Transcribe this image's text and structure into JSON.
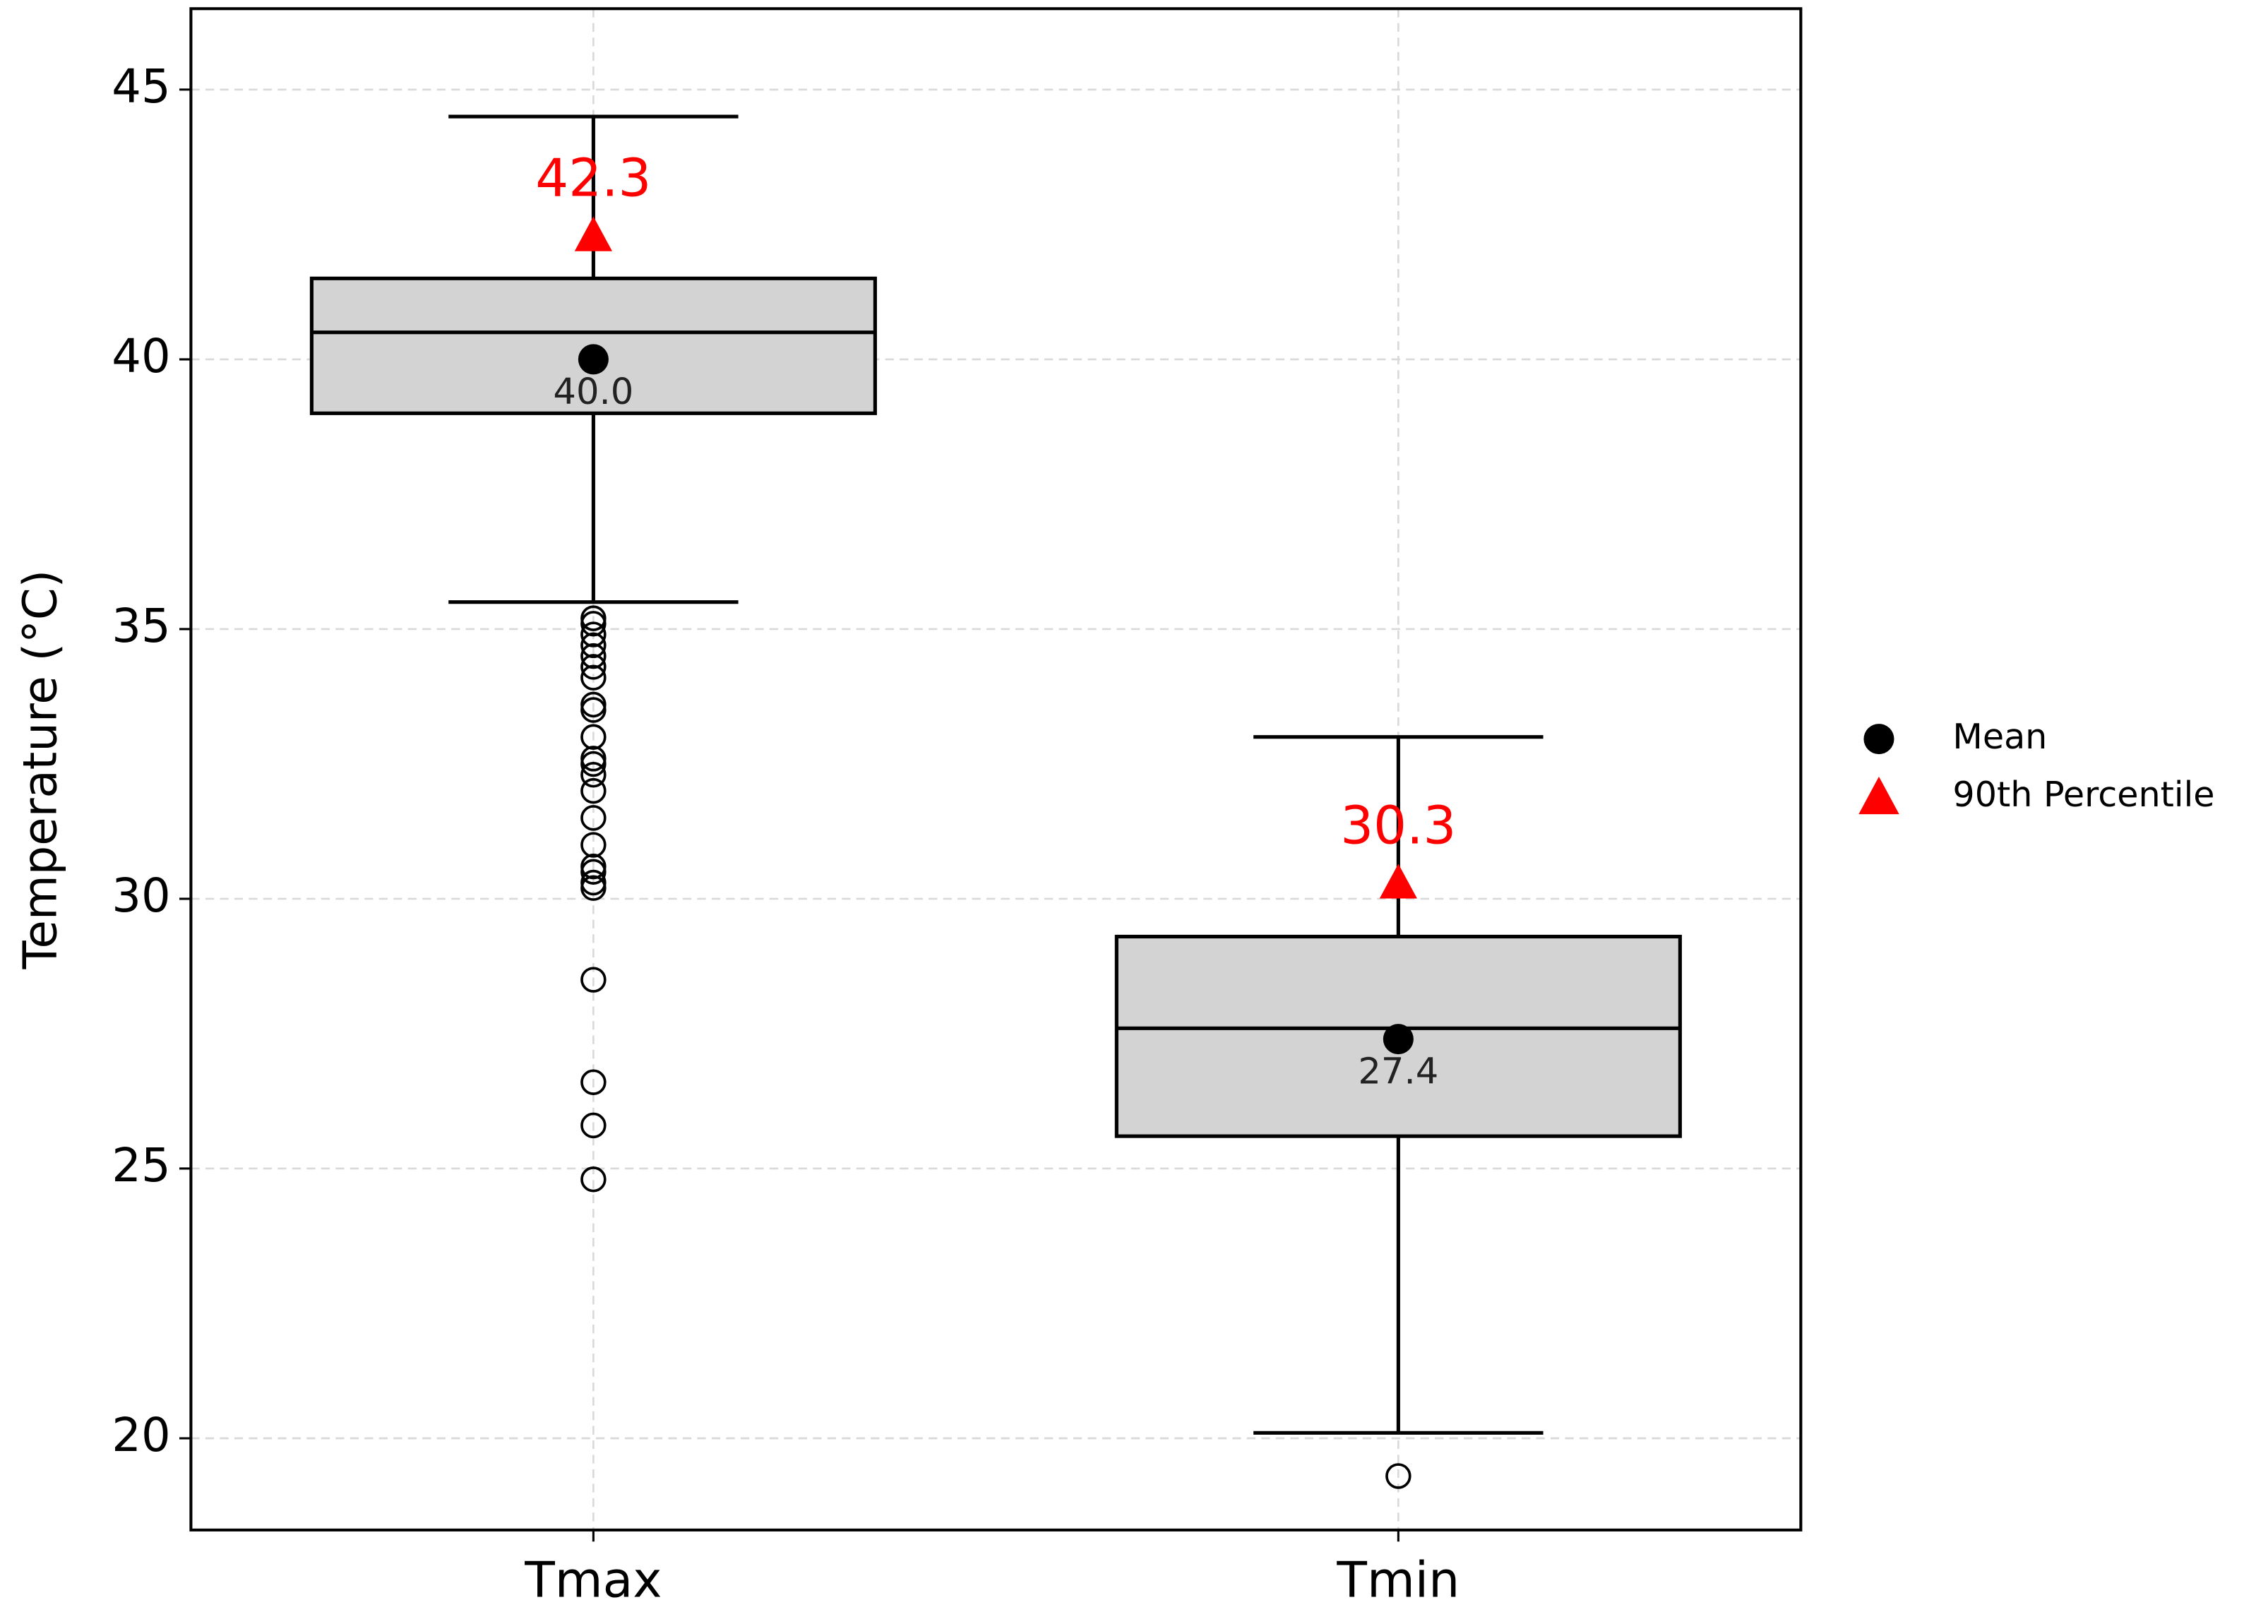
{
  "chart_data": {
    "type": "box",
    "ylabel": "Temperature (°C)",
    "categories": [
      "Tmax",
      "Tmin"
    ],
    "boxes": [
      {
        "whislo": 35.5,
        "q1": 39.0,
        "med": 40.5,
        "q3": 41.5,
        "whishi": 44.5,
        "outliers": [
          35.2,
          35.1,
          34.9,
          34.7,
          34.5,
          34.3,
          34.1,
          33.6,
          33.5,
          33.0,
          32.6,
          32.5,
          32.3,
          32.0,
          31.5,
          31.0,
          30.6,
          30.5,
          30.3,
          30.2,
          28.5,
          26.6,
          25.8,
          24.8
        ]
      },
      {
        "whislo": 20.1,
        "q1": 25.6,
        "med": 27.6,
        "q3": 29.3,
        "whishi": 33.0,
        "outliers": [
          19.3
        ]
      }
    ],
    "box_color": "#d3d3d3",
    "means": [
      40.0,
      27.4
    ],
    "mean_labels": [
      "40.0",
      "27.4"
    ],
    "p90": [
      42.3,
      30.3
    ],
    "legend": [
      {
        "name": "Mean",
        "color": "#000000",
        "marker": "circle"
      },
      {
        "name": "90th Percentile",
        "color": "#ff0000",
        "marker": "triangle"
      }
    ],
    "ylim": [
      18.3,
      46.5
    ],
    "yticks": [
      20,
      25,
      30,
      35,
      40,
      45
    ],
    "grid": true
  }
}
